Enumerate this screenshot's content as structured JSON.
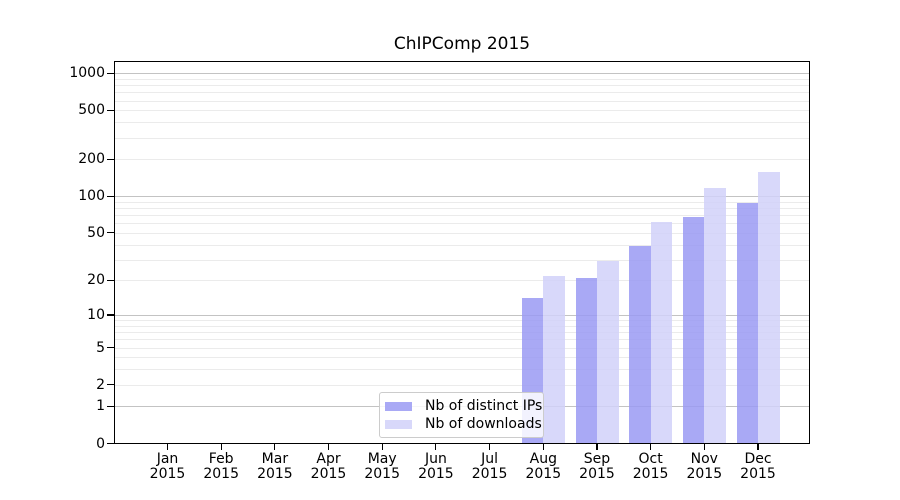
{
  "chart_data": {
    "type": "bar",
    "title": "ChIPComp 2015",
    "categories": [
      "Jan",
      "Feb",
      "Mar",
      "Apr",
      "May",
      "Jun",
      "Jul",
      "Aug",
      "Sep",
      "Oct",
      "Nov",
      "Dec"
    ],
    "category_year": "2015",
    "xlabel": "",
    "ylabel": "",
    "yscale": "log1p",
    "yticks": [
      0,
      1,
      2,
      5,
      10,
      20,
      50,
      100,
      200,
      500,
      1000
    ],
    "ylim": [
      0,
      1260
    ],
    "grid": true,
    "legend_position": "lower center",
    "series": [
      {
        "name": "Nb of distinct IPs",
        "color": "#a9a9f5",
        "values": [
          0,
          0,
          0,
          0,
          0,
          0,
          0,
          14,
          21,
          39,
          67,
          88
        ]
      },
      {
        "name": "Nb of downloads",
        "color": "#d8d8fa",
        "values": [
          0,
          0,
          0,
          0,
          0,
          0,
          0,
          22,
          29,
          62,
          117,
          157
        ]
      }
    ]
  },
  "colors": {
    "background": "#ffffff",
    "spine": "#000000",
    "grid_major": "#c3c3c3",
    "grid_minor": "#ebebeb",
    "tick": "#000000",
    "text": "#000000",
    "legend_border": "#cccccc"
  }
}
